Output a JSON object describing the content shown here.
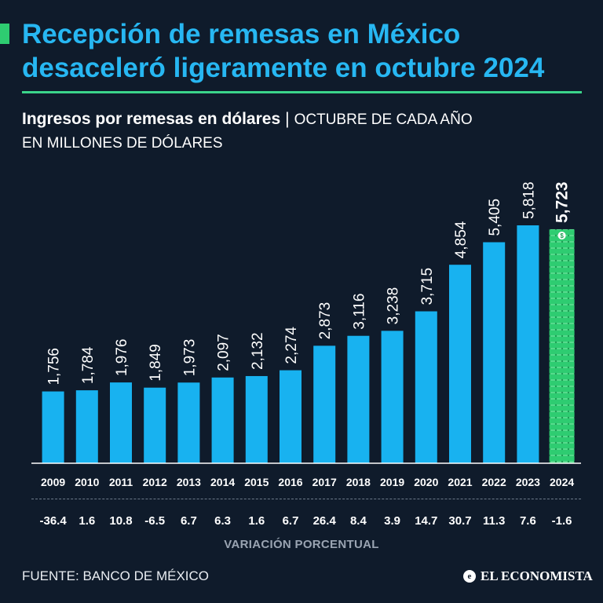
{
  "header": {
    "title": "Recepción de remesas en México desaceleró ligeramente en octubre 2024",
    "subtitle_bold": "Ingresos por remesas en dólares",
    "subtitle_sep": "|",
    "subtitle_note": "OCTUBRE DE CADA AÑO",
    "unit": "EN MILLONES DE DÓLARES"
  },
  "colors": {
    "background": "#0f1b2b",
    "title": "#27b7f2",
    "bar": "#18b2f0",
    "highlight_bar": "#2ecc71",
    "rule": "#3bd48a"
  },
  "chart_data": {
    "type": "bar",
    "categories": [
      "2009",
      "2010",
      "2011",
      "2012",
      "2013",
      "2014",
      "2015",
      "2016",
      "2017",
      "2018",
      "2019",
      "2020",
      "2021",
      "2022",
      "2023",
      "2024"
    ],
    "values": [
      1756,
      1784,
      1976,
      1849,
      1973,
      2097,
      2132,
      2274,
      2873,
      3116,
      3238,
      3715,
      4854,
      5405,
      5818,
      5723
    ],
    "value_labels": [
      "1,756",
      "1,784",
      "1,976",
      "1,849",
      "1,973",
      "2,097",
      "2,132",
      "2,274",
      "2,873",
      "3,116",
      "3,238",
      "3,715",
      "4,854",
      "5,405",
      "5,818",
      "5,723"
    ],
    "pct_change": [
      "-36.4",
      "1.6",
      "10.8",
      "-6.5",
      "6.7",
      "6.3",
      "1.6",
      "6.7",
      "26.4",
      "8.4",
      "3.9",
      "14.7",
      "30.7",
      "11.3",
      "7.6",
      "-1.6"
    ],
    "pct_label": "VARIACIÓN PORCENTUAL",
    "highlight_index": 15,
    "highlight_icon": "dollar-bill-icon",
    "ylim": [
      0,
      6000
    ]
  },
  "footer": {
    "source": "FUENTE: BANCO DE MÉXICO",
    "brand": "EL ECONOMISTA",
    "brand_icon": "e-logo-icon"
  }
}
